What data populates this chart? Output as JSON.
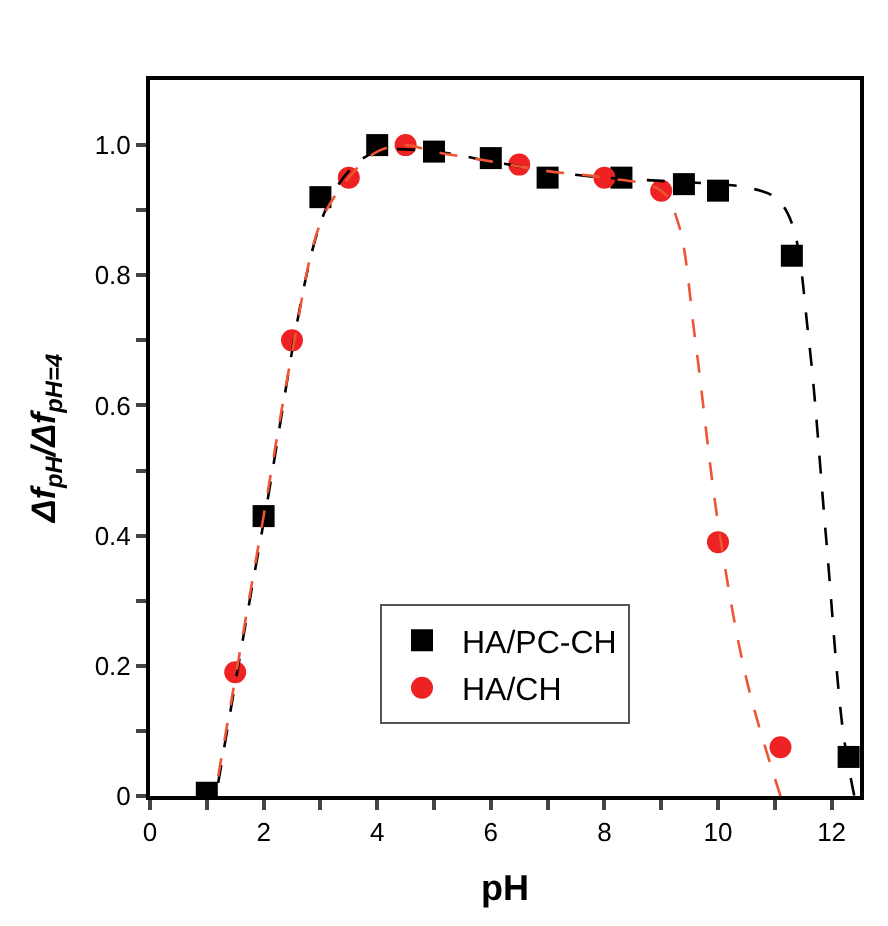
{
  "chart_data": {
    "type": "scatter",
    "xlabel": "pH",
    "ylabel": "Δf$_{pH}$/Δf$_{pH=4}$",
    "xlim": [
      0,
      12.5
    ],
    "ylim": [
      0,
      1.1
    ],
    "xticks": [
      0,
      {
        "value": 1,
        "label": null
      },
      2,
      {
        "value": 3,
        "label": null
      },
      4,
      {
        "value": 5,
        "label": null
      },
      6,
      {
        "value": 7,
        "label": null
      },
      8,
      {
        "value": 9,
        "label": null
      },
      10,
      {
        "value": 11,
        "label": null
      },
      12
    ],
    "yticks": [
      0,
      {
        "value": 0.1,
        "label": null
      },
      0.2,
      {
        "value": 0.3,
        "label": null
      },
      0.4,
      {
        "value": 0.5,
        "label": null
      },
      0.6,
      {
        "value": 0.7,
        "label": null
      },
      0.8,
      {
        "value": 0.9,
        "label": null
      },
      {
        "value": 1,
        "label": "1.0"
      }
    ],
    "legend": "bottom",
    "series": [
      {
        "name": "HA/PC-CH",
        "color": "#000000",
        "marker": "square",
        "x": [
          1,
          2,
          3,
          4,
          5,
          6,
          7,
          8.3,
          9.4,
          10,
          11.3,
          12.3
        ],
        "values": [
          0.005,
          0.43,
          0.92,
          1.0,
          0.99,
          0.98,
          0.95,
          0.95,
          0.94,
          0.93,
          0.83,
          0.06
        ]
      },
      {
        "name": "HA/CH",
        "color": "#ee2222",
        "marker": "circle",
        "x": [
          1.5,
          2.5,
          3.5,
          4.5,
          6.5,
          8.0,
          9.0,
          10,
          11.1
        ],
        "values": [
          0.19,
          0.7,
          0.95,
          1.0,
          0.97,
          0.95,
          0.93,
          0.39,
          0.075
        ]
      },
      {
        "type": "line",
        "color": "#000000",
        "line_style": "dashed",
        "marker": "none",
        "x": [
          1.2,
          2,
          3,
          3.5,
          4,
          5,
          6,
          7,
          8,
          9,
          10,
          10.5,
          11,
          11.3,
          11.6,
          11.9,
          12.2,
          12.4
        ],
        "values": [
          0.02,
          0.42,
          0.88,
          0.96,
          0.99,
          0.99,
          0.975,
          0.96,
          0.95,
          0.945,
          0.94,
          0.935,
          0.92,
          0.88,
          0.7,
          0.4,
          0.1,
          0.0
        ]
      },
      {
        "type": "line",
        "color": "#ee5533",
        "line_style": "dashed",
        "marker": "none",
        "x": [
          1.2,
          2,
          2.5,
          3,
          3.5,
          4,
          4.5,
          5,
          6,
          7,
          8,
          9,
          9.3,
          9.6,
          10,
          10.5,
          11.1
        ],
        "values": [
          0.03,
          0.43,
          0.68,
          0.88,
          0.95,
          0.99,
          1.0,
          0.99,
          0.975,
          0.96,
          0.95,
          0.93,
          0.88,
          0.7,
          0.42,
          0.18,
          0.0
        ]
      }
    ]
  }
}
